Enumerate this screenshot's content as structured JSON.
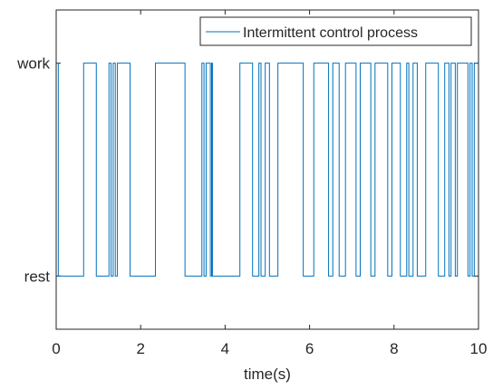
{
  "chart_data": {
    "type": "line",
    "title": "",
    "xlabel": "time(s)",
    "ylabel": "",
    "xlim": [
      0,
      10
    ],
    "ylim": [
      -0.25,
      1.25
    ],
    "xticks": [
      0,
      2,
      4,
      6,
      8,
      10
    ],
    "xtick_labels": [
      "0",
      "2",
      "4",
      "6",
      "8",
      "10"
    ],
    "yticks": [
      0,
      1
    ],
    "ytick_labels": [
      "rest",
      "work"
    ],
    "grid": false,
    "legend_position": "top-right",
    "series_color": "#0072BD",
    "series": [
      {
        "name": "Intermittent control process",
        "work_intervals": [
          [
            0.0,
            0.05
          ],
          [
            0.65,
            0.95
          ],
          [
            1.25,
            1.3
          ],
          [
            1.35,
            1.4
          ],
          [
            1.45,
            1.75
          ],
          [
            2.35,
            3.05
          ],
          [
            3.45,
            3.5
          ],
          [
            3.55,
            3.65
          ],
          [
            3.68,
            3.7
          ],
          [
            4.35,
            4.65
          ],
          [
            4.8,
            4.85
          ],
          [
            4.95,
            5.05
          ],
          [
            5.25,
            5.85
          ],
          [
            6.1,
            6.45
          ],
          [
            6.55,
            6.7
          ],
          [
            6.85,
            7.1
          ],
          [
            7.2,
            7.45
          ],
          [
            7.55,
            7.85
          ],
          [
            7.95,
            8.15
          ],
          [
            8.3,
            8.35
          ],
          [
            8.45,
            8.55
          ],
          [
            8.75,
            9.05
          ],
          [
            9.2,
            9.3
          ],
          [
            9.35,
            9.45
          ],
          [
            9.5,
            9.75
          ],
          [
            9.8,
            9.85
          ],
          [
            9.9,
            10.0
          ]
        ]
      }
    ]
  }
}
